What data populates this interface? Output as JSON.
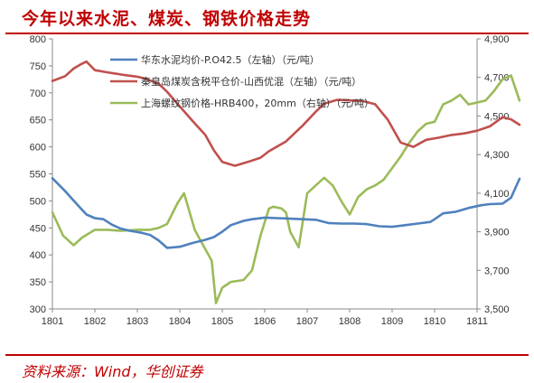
{
  "title": "今年以来水泥、煤炭、钢铁价格走势",
  "source": "资料来源：Wind，华创证券",
  "chart_data": {
    "type": "line",
    "x_tick_labels": [
      "1801",
      "1802",
      "1803",
      "1804",
      "1805",
      "1806",
      "1807",
      "1808",
      "1809",
      "1810",
      "1811"
    ],
    "left_axis": {
      "min": 300,
      "max": 800,
      "ticks": [
        "300",
        "350",
        "400",
        "450",
        "500",
        "550",
        "600",
        "650",
        "700",
        "750",
        "800"
      ]
    },
    "right_axis": {
      "min": 3500,
      "max": 4900,
      "ticks": [
        "3,500",
        "3,700",
        "3,900",
        "4,100",
        "4,300",
        "4,500",
        "4,700",
        "4,900"
      ]
    },
    "series": [
      {
        "name": "华东水泥均价-P.O42.5（左轴）（元/吨）",
        "axis": "left",
        "color": "#4f81bd",
        "x": [
          0,
          0.3,
          0.6,
          0.8,
          1.0,
          1.2,
          1.4,
          1.6,
          1.8,
          1.95,
          2.1,
          2.3,
          2.5,
          2.7,
          3.0,
          3.3,
          3.6,
          3.8,
          4.0,
          4.2,
          4.5,
          4.7,
          5.0,
          5.3,
          5.6,
          5.9,
          6.2,
          6.5,
          6.8,
          7.1,
          7.4,
          7.7,
          8.0,
          8.3,
          8.6,
          8.9,
          9.0,
          9.2,
          9.5,
          9.8,
          10.1,
          10.3,
          10.6,
          10.8,
          11.0
        ],
        "y": [
          542,
          518,
          492,
          475,
          468,
          466,
          456,
          449,
          445,
          443,
          441,
          437,
          427,
          413,
          415,
          422,
          428,
          433,
          443,
          455,
          463,
          466,
          469,
          468,
          467,
          466,
          465,
          459,
          458,
          458,
          457,
          453,
          452,
          455,
          458,
          461,
          466,
          477,
          480,
          487,
          492,
          494,
          495,
          506,
          541
        ]
      },
      {
        "name": "秦皇岛煤炭含税平仓价-山西优混（左轴）（元/吨）",
        "axis": "left",
        "color": "#c0504d",
        "x": [
          0,
          0.3,
          0.5,
          0.65,
          0.8,
          1.0,
          1.3,
          1.7,
          2.0,
          2.2,
          2.5,
          2.7,
          3.0,
          3.3,
          3.6,
          3.8,
          4.0,
          4.3,
          4.6,
          4.9,
          5.1,
          5.5,
          5.9,
          6.2,
          6.4,
          6.7,
          7.0,
          7.3,
          7.6,
          7.9,
          8.2,
          8.5,
          8.8,
          9.1,
          9.4,
          9.7,
          10.0,
          10.3,
          10.6,
          10.8,
          11.0
        ],
        "y": [
          722,
          731,
          745,
          752,
          758,
          742,
          738,
          733,
          730,
          726,
          717,
          702,
          675,
          648,
          622,
          594,
          572,
          565,
          572,
          580,
          592,
          610,
          640,
          665,
          680,
          687,
          686,
          685,
          679,
          650,
          608,
          600,
          613,
          617,
          622,
          625,
          630,
          638,
          655,
          651,
          641
        ]
      },
      {
        "name": "上海螺纹钢价格-HRB400，20mm（右轴）（元/吨）",
        "axis": "right",
        "color": "#9bbb59",
        "x": [
          0,
          0.25,
          0.5,
          0.7,
          1.0,
          1.3,
          1.6,
          2.0,
          2.3,
          2.5,
          2.7,
          2.95,
          3.1,
          3.35,
          3.5,
          3.75,
          3.85,
          4.0,
          4.2,
          4.5,
          4.7,
          4.9,
          5.1,
          5.2,
          5.4,
          5.5,
          5.6,
          5.8,
          6.0,
          6.2,
          6.4,
          6.6,
          6.8,
          7.0,
          7.2,
          7.4,
          7.6,
          7.8,
          8.0,
          8.2,
          8.4,
          8.6,
          8.8,
          9.0,
          9.2,
          9.4,
          9.6,
          9.8,
          10.0,
          10.2,
          10.4,
          10.6,
          10.8,
          11.0
        ],
        "y": [
          4000,
          3880,
          3830,
          3870,
          3910,
          3910,
          3905,
          3910,
          3910,
          3920,
          3940,
          4050,
          4100,
          3910,
          3850,
          3750,
          3530,
          3610,
          3640,
          3650,
          3700,
          3880,
          4020,
          4030,
          4020,
          4000,
          3900,
          3820,
          4100,
          4140,
          4180,
          4140,
          4060,
          3990,
          4080,
          4120,
          4140,
          4170,
          4230,
          4290,
          4360,
          4420,
          4460,
          4470,
          4560,
          4580,
          4610,
          4560,
          4570,
          4580,
          4630,
          4690,
          4710,
          4580
        ]
      }
    ]
  }
}
